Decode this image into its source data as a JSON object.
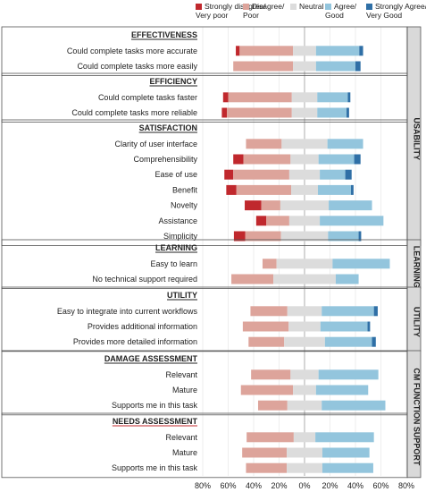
{
  "chart_data": {
    "type": "bar",
    "stacked": "diverging",
    "colors": [
      "#c0282d",
      "#dda49b",
      "#dcdcdc",
      "#93c5dd",
      "#2f6fa6"
    ],
    "legend": [
      {
        "name": "Strongly disagree/",
        "sub": "Very poor"
      },
      {
        "name": "Disagree/",
        "sub": "Poor"
      },
      {
        "name": "Neutral",
        "sub": ""
      },
      {
        "name": "Agree/",
        "sub": "Good"
      },
      {
        "name": "Strongly Agree/",
        "sub": "Very Good"
      }
    ],
    "xticks": [
      "80%",
      "60%",
      "40%",
      "20%",
      "0%",
      "20%",
      "40%",
      "60%",
      "80%"
    ],
    "xlim": [
      -80,
      80
    ],
    "groups": [
      {
        "section": "USABILITY",
        "header": "EFFECTIVENESS",
        "header_color": "#222222",
        "rows": [
          {
            "label": "Could complete  tasks more accurate",
            "values": [
              3,
              42,
              18,
              34,
              3
            ]
          },
          {
            "label": "Could complete tasks more easily",
            "values": [
              0,
              47,
              18,
              31,
              4
            ]
          }
        ]
      },
      {
        "section": "USABILITY",
        "header": "EFFICIENCY",
        "header_color": "#222222",
        "rows": [
          {
            "label": "Could complete tasks faster",
            "values": [
              4,
              50,
              20,
              24,
              2
            ]
          },
          {
            "label": "Could complete tasks more reliable",
            "values": [
              4,
              51,
              20,
              23,
              2
            ]
          }
        ]
      },
      {
        "section": "USABILITY",
        "header": "SATISFACTION",
        "header_color": "#222222",
        "rows": [
          {
            "label": "Clarity of user interface",
            "values": [
              0,
              28,
              36,
              28,
              0
            ]
          },
          {
            "label": "Comprehensibility",
            "values": [
              8,
              37,
              22,
              28,
              5
            ]
          },
          {
            "label": "Ease of use",
            "values": [
              7,
              44,
              24,
              20,
              5
            ]
          },
          {
            "label": "Benefit",
            "values": [
              8,
              43,
              21,
              26,
              2
            ]
          },
          {
            "label": "Novelty",
            "values": [
              13,
              15,
              38,
              34,
              0
            ]
          },
          {
            "label": "Assistance",
            "values": [
              8,
              18,
              24,
              50,
              0
            ]
          },
          {
            "label": "Simplicity",
            "values": [
              9,
              28,
              37,
              24,
              2
            ]
          }
        ]
      },
      {
        "section": "LEARNING",
        "header": "LEARNING",
        "header_color": "#222222",
        "rows": [
          {
            "label": "Easy to learn",
            "values": [
              0,
              11,
              44,
              45,
              0
            ]
          },
          {
            "label": "No technical support required",
            "values": [
              0,
              33,
              49,
              18,
              0
            ]
          }
        ]
      },
      {
        "section": "UTILITY",
        "header": "UTILITY",
        "header_color": "#222222",
        "rows": [
          {
            "label": "Easy to integrate into current workflows",
            "values": [
              0,
              29,
              27,
              41,
              3
            ]
          },
          {
            "label": "Provides additional information",
            "values": [
              0,
              36,
              25,
              37,
              2
            ]
          },
          {
            "label": "Provides  more detailed information",
            "values": [
              0,
              28,
              32,
              37,
              3
            ]
          }
        ]
      },
      {
        "section": "CM FUNCTION SUPPORT",
        "header": "DAMAGE ASSESSMENT",
        "header_color": "#222222",
        "rows": [
          {
            "label": "Relevant",
            "values": [
              0,
              31,
              22,
              47,
              0
            ]
          },
          {
            "label": "Mature",
            "values": [
              0,
              41,
              18,
              41,
              0
            ]
          },
          {
            "label": "Supports me in this task",
            "values": [
              0,
              23,
              27,
              50,
              0
            ]
          }
        ]
      },
      {
        "section": "CM FUNCTION SUPPORT",
        "header": "NEEDS ASSESSMENT",
        "header_color": "#c0282d",
        "rows": [
          {
            "label": "Relevant",
            "values": [
              0,
              37,
              17,
              46,
              0
            ]
          },
          {
            "label": "Mature",
            "values": [
              0,
              35,
              28,
              37,
              0
            ]
          },
          {
            "label": "Supports me in this task",
            "values": [
              0,
              32,
              28,
              40,
              0
            ]
          }
        ]
      }
    ],
    "sections": [
      "USABILITY",
      "LEARNING",
      "UTILITY",
      "CM FUNCTION SUPPORT"
    ]
  }
}
